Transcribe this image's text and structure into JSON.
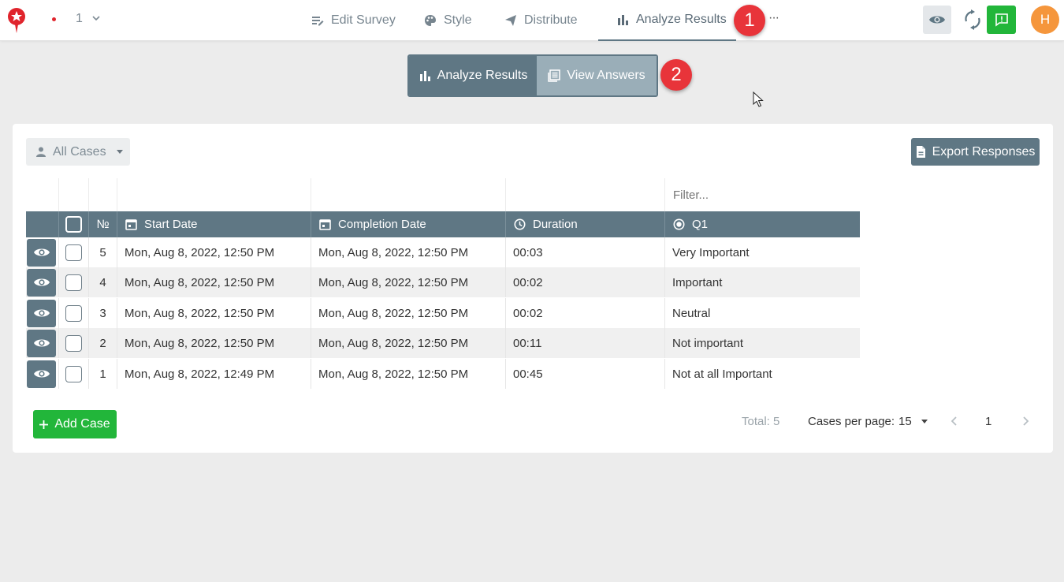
{
  "header": {
    "page_number": "1",
    "tabs": [
      {
        "label": "Edit Survey",
        "icon": "edit-list-icon"
      },
      {
        "label": "Style",
        "icon": "palette-icon"
      },
      {
        "label": "Distribute",
        "icon": "send-icon"
      },
      {
        "label": "Analyze Results",
        "icon": "bar-chart-icon",
        "active": true
      }
    ],
    "more_label": "···",
    "avatar_initial": "H",
    "badges": [
      "1",
      "2"
    ]
  },
  "view_toggle": {
    "analyze_label": "Analyze Results",
    "view_answers_label": "View Answers"
  },
  "toolbar": {
    "cases_filter": "All Cases",
    "export_label": "Export Responses"
  },
  "table": {
    "filter_placeholder": "Filter...",
    "columns": [
      "№",
      "Start Date",
      "Completion Date",
      "Duration",
      "Q1"
    ],
    "rows": [
      {
        "no": "5",
        "start": "Mon, Aug 8, 2022, 12:50 PM",
        "completion": "Mon, Aug 8, 2022, 12:50 PM",
        "duration": "00:03",
        "q1": "Very Important"
      },
      {
        "no": "4",
        "start": "Mon, Aug 8, 2022, 12:50 PM",
        "completion": "Mon, Aug 8, 2022, 12:50 PM",
        "duration": "00:02",
        "q1": "Important"
      },
      {
        "no": "3",
        "start": "Mon, Aug 8, 2022, 12:50 PM",
        "completion": "Mon, Aug 8, 2022, 12:50 PM",
        "duration": "00:02",
        "q1": "Neutral"
      },
      {
        "no": "2",
        "start": "Mon, Aug 8, 2022, 12:50 PM",
        "completion": "Mon, Aug 8, 2022, 12:50 PM",
        "duration": "00:11",
        "q1": "Not important"
      },
      {
        "no": "1",
        "start": "Mon, Aug 8, 2022, 12:49 PM",
        "completion": "Mon, Aug 8, 2022, 12:50 PM",
        "duration": "00:45",
        "q1": "Not at all Important"
      }
    ]
  },
  "footer": {
    "add_label": "Add Case",
    "total_text": "Total: 5",
    "cases_per_page_label": "Cases per page:",
    "cases_per_page_value": "15",
    "current_page": "1"
  },
  "colors": {
    "primary": "#5f7784",
    "primary_light": "#9aaeb8",
    "green": "#22b63a",
    "badge_red": "#e8343a",
    "avatar_orange": "#f5963c"
  }
}
